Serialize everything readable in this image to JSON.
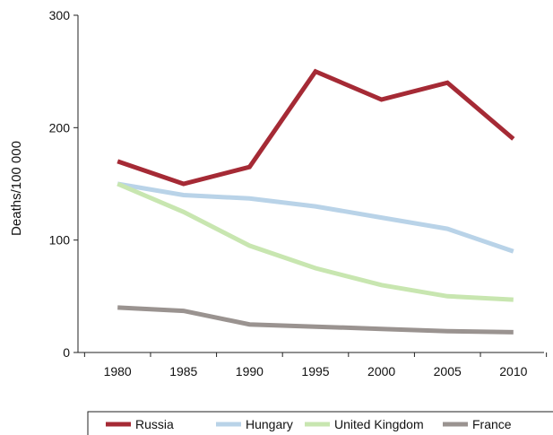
{
  "chart_data": {
    "type": "line",
    "title": "",
    "xlabel": "",
    "ylabel": "Deaths/100 000",
    "x": [
      1980,
      1985,
      1990,
      1995,
      2000,
      2005,
      2010
    ],
    "xticks": [
      "1980",
      "1985",
      "1990",
      "1995",
      "2000",
      "2005",
      "2010"
    ],
    "yticks": [
      "0",
      "100",
      "200",
      "300"
    ],
    "ylim": [
      0,
      300
    ],
    "xlim": [
      1977,
      2013
    ],
    "grid": false,
    "legend_position": "bottom",
    "series": [
      {
        "name": "Russia",
        "color": "#a52a35",
        "values": [
          170,
          150,
          165,
          250,
          225,
          240,
          190
        ]
      },
      {
        "name": "Hungary",
        "color": "#b9d3e8",
        "values": [
          150,
          140,
          137,
          130,
          120,
          110,
          90
        ]
      },
      {
        "name": "United Kingdom",
        "color": "#c8e6b0",
        "values": [
          150,
          125,
          95,
          75,
          60,
          50,
          47
        ]
      },
      {
        "name": "France",
        "color": "#9a9390",
        "values": [
          40,
          37,
          25,
          23,
          21,
          19,
          18
        ]
      }
    ]
  }
}
